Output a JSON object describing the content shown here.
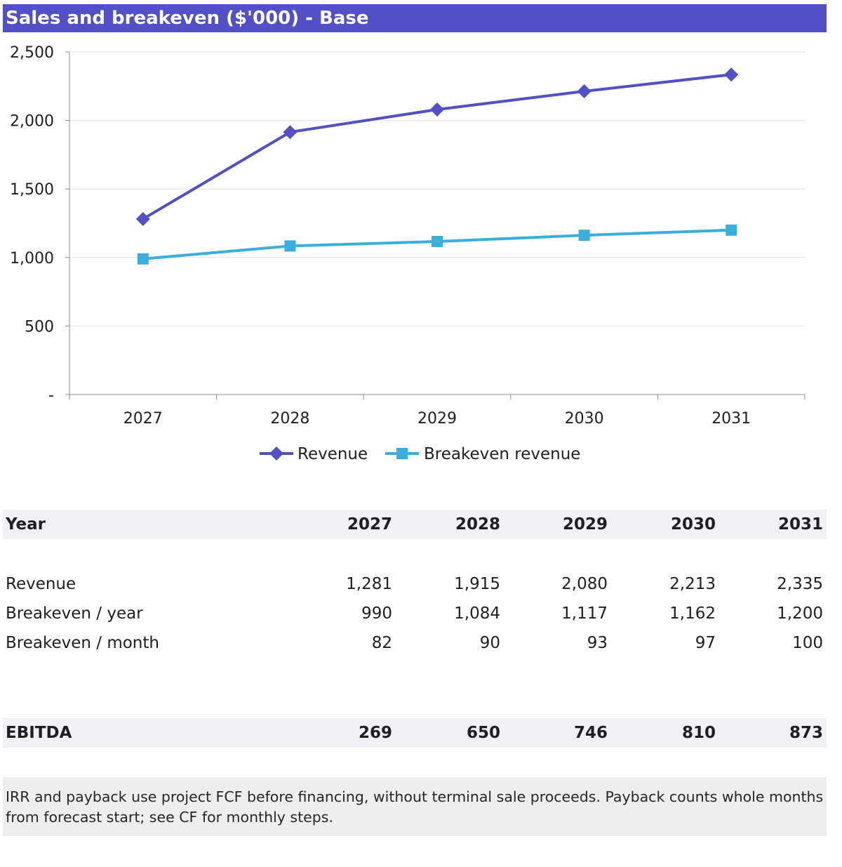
{
  "chart_data": {
    "type": "line",
    "title": "Sales and breakeven ($'000) - Base",
    "categories": [
      "2027",
      "2028",
      "2029",
      "2030",
      "2031"
    ],
    "series": [
      {
        "name": "Revenue",
        "values": [
          1281,
          1915,
          2080,
          2213,
          2335
        ],
        "color": "#5150c7",
        "marker": "diamond"
      },
      {
        "name": "Breakeven revenue",
        "values": [
          990,
          1084,
          1117,
          1162,
          1200
        ],
        "color": "#3aafdc",
        "marker": "square"
      }
    ],
    "ylim": [
      0,
      2500
    ],
    "yticks": [
      0,
      500,
      1000,
      1500,
      2000,
      2500
    ],
    "ytick_labels": [
      "-",
      "500",
      "1,000",
      "1,500",
      "2,000",
      "2,500"
    ],
    "grid": true,
    "legend": "bottom-center"
  },
  "table": {
    "header": {
      "label": "Year",
      "cells": [
        "2027",
        "2028",
        "2029",
        "2030",
        "2031"
      ]
    },
    "rows": [
      {
        "label": "Revenue",
        "cells": [
          "1,281",
          "1,915",
          "2,080",
          "2,213",
          "2,335"
        ]
      },
      {
        "label": "Breakeven / year",
        "cells": [
          "990",
          "1,084",
          "1,117",
          "1,162",
          "1,200"
        ]
      },
      {
        "label": "Breakeven / month",
        "cells": [
          "82",
          "90",
          "93",
          "97",
          "100"
        ]
      }
    ],
    "ebitda": {
      "label": "EBITDA",
      "cells": [
        "269",
        "650",
        "746",
        "810",
        "873"
      ]
    }
  },
  "note": "IRR and payback use project FCF before financing, without terminal sale proceeds. Payback counts whole months from forecast start; see CF for monthly steps."
}
